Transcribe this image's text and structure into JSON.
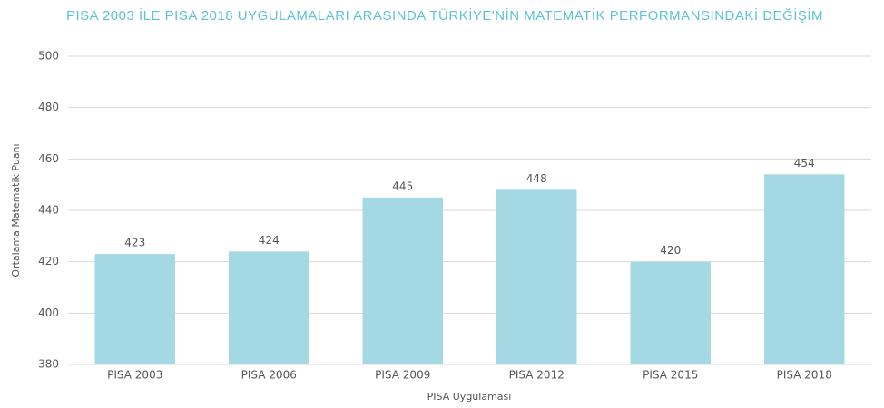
{
  "chart_data": {
    "type": "bar",
    "title": "PISA 2003 İLE PISA 2018 UYGULAMALARI ARASINDA TÜRKİYE'NİN MATEMATİK PERFORMANSINDAKİ DEĞİŞİM",
    "x_label": "PISA Uygulaması",
    "y_label": "Ortalama Matematik Puanı",
    "categories": [
      "PISA 2003",
      "PISA 2006",
      "PISA 2009",
      "PISA 2012",
      "PISA 2015",
      "PISA 2018"
    ],
    "values": [
      423,
      424,
      445,
      448,
      420,
      454
    ],
    "color": "#a4d9e3",
    "ylim": [
      380,
      500
    ],
    "yticks": [
      380,
      400,
      420,
      440,
      460,
      480,
      500
    ],
    "grid": true
  }
}
